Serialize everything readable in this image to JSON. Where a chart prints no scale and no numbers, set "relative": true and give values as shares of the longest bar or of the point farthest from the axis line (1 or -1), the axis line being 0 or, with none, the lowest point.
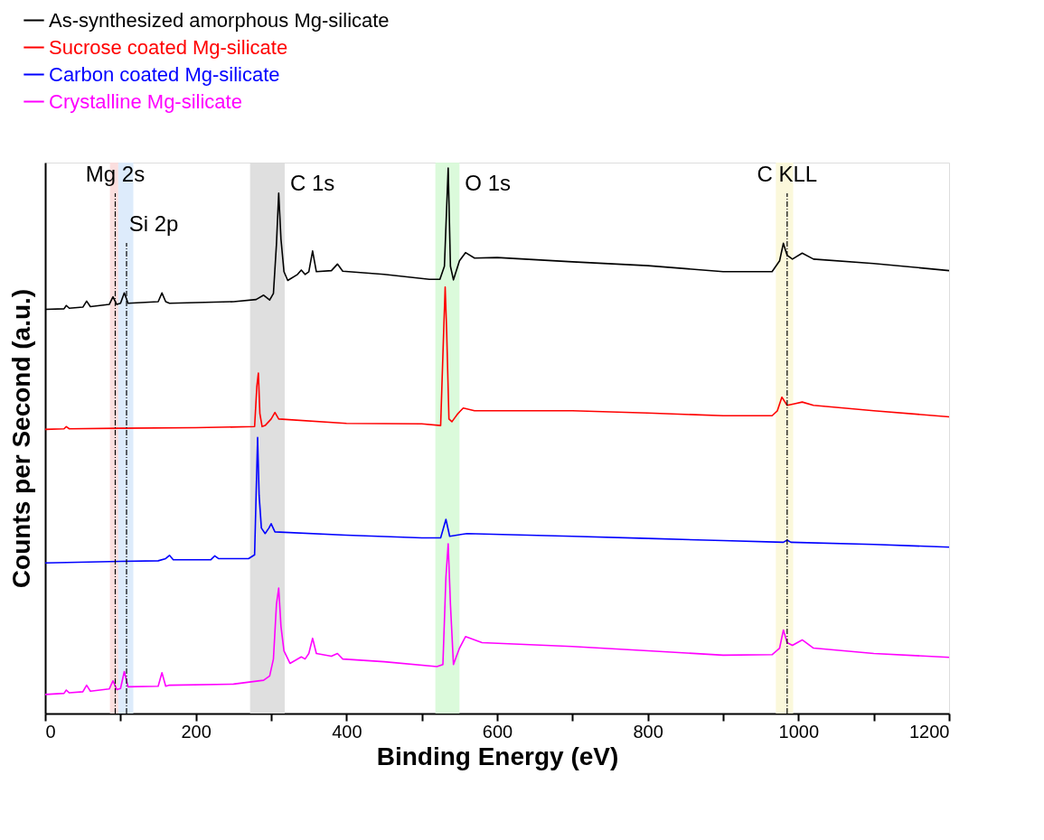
{
  "chart_data": {
    "type": "line",
    "relative": true,
    "xlabel": "Binding Energy (eV)",
    "ylabel": "Counts per Second (a.u.)",
    "xlim": [
      0,
      1200
    ],
    "xticks": [
      0,
      {
        "value": 100,
        "label": null
      },
      200,
      {
        "value": 300,
        "label": null
      },
      400,
      {
        "value": 500,
        "label": null
      },
      600,
      {
        "value": 700,
        "label": null
      },
      800,
      {
        "value": 900,
        "label": null
      },
      1000,
      {
        "value": 1100,
        "label": null
      },
      1200
    ],
    "grid": false,
    "legend": "top left",
    "line_style": "solid",
    "series": [
      {
        "name": "As-synthesized amorphous Mg-silicate",
        "color": "#000000",
        "x": [
          0,
          25,
          28,
          32,
          50,
          55,
          60,
          85,
          90,
          95,
          100,
          105,
          110,
          150,
          155,
          160,
          165,
          250,
          280,
          290,
          298,
          303,
          307,
          310,
          313,
          317,
          322,
          335,
          340,
          345,
          350,
          355,
          360,
          380,
          388,
          395,
          450,
          510,
          524,
          530,
          535,
          538,
          542,
          550,
          558,
          570,
          600,
          700,
          800,
          900,
          965,
          975,
          980,
          985,
          992,
          1005,
          1020,
          1100,
          1200
        ],
        "values": [
          0.741,
          0.742,
          0.748,
          0.743,
          0.745,
          0.756,
          0.746,
          0.75,
          0.764,
          0.75,
          0.752,
          0.771,
          0.752,
          0.755,
          0.771,
          0.755,
          0.752,
          0.755,
          0.759,
          0.767,
          0.758,
          0.77,
          0.86,
          0.954,
          0.87,
          0.81,
          0.794,
          0.805,
          0.813,
          0.805,
          0.81,
          0.848,
          0.81,
          0.812,
          0.824,
          0.811,
          0.805,
          0.796,
          0.796,
          0.82,
          1.0,
          0.82,
          0.795,
          0.83,
          0.845,
          0.835,
          0.836,
          0.828,
          0.821,
          0.81,
          0.81,
          0.83,
          0.862,
          0.84,
          0.833,
          0.844,
          0.833,
          0.825,
          0.812
        ]
      },
      {
        "name": "Sucrose coated Mg-silicate",
        "color": "#ff0000",
        "x": [
          0,
          25,
          28,
          32,
          100,
          200,
          278,
          281,
          283,
          285,
          288,
          292,
          300,
          305,
          310,
          400,
          500,
          525,
          529,
          531,
          533,
          536,
          540,
          548,
          555,
          570,
          700,
          800,
          900,
          965,
          972,
          978,
          985,
          995,
          1005,
          1020,
          1100,
          1200
        ],
        "values": [
          0.521,
          0.522,
          0.526,
          0.522,
          0.523,
          0.524,
          0.526,
          0.6,
          0.624,
          0.55,
          0.526,
          0.528,
          0.54,
          0.552,
          0.54,
          0.532,
          0.531,
          0.528,
          0.7,
          0.782,
          0.7,
          0.54,
          0.535,
          0.55,
          0.56,
          0.555,
          0.555,
          0.551,
          0.546,
          0.546,
          0.555,
          0.58,
          0.565,
          0.568,
          0.571,
          0.565,
          0.555,
          0.544
        ]
      },
      {
        "name": "Carbon coated Mg-silicate",
        "color": "#0000ff",
        "x": [
          0,
          100,
          150,
          160,
          165,
          170,
          220,
          225,
          230,
          270,
          278,
          280,
          282,
          284,
          287,
          292,
          297,
          300,
          305,
          400,
          500,
          525,
          532,
          537,
          560,
          700,
          800,
          900,
          980,
          985,
          990,
          1100,
          1200
        ],
        "values": [
          0.276,
          0.279,
          0.28,
          0.284,
          0.29,
          0.282,
          0.282,
          0.289,
          0.284,
          0.284,
          0.291,
          0.4,
          0.506,
          0.4,
          0.34,
          0.33,
          0.34,
          0.348,
          0.333,
          0.327,
          0.322,
          0.322,
          0.356,
          0.325,
          0.33,
          0.325,
          0.321,
          0.317,
          0.314,
          0.318,
          0.314,
          0.31,
          0.305
        ]
      },
      {
        "name": "Crystalline Mg-silicate",
        "color": "#ff00ff",
        "x": [
          0,
          25,
          28,
          32,
          50,
          55,
          60,
          85,
          90,
          95,
          100,
          105,
          110,
          150,
          155,
          160,
          165,
          250,
          290,
          298,
          303,
          307,
          310,
          313,
          317,
          325,
          340,
          345,
          350,
          355,
          360,
          380,
          388,
          395,
          450,
          520,
          528,
          532,
          535,
          538,
          542,
          550,
          558,
          580,
          700,
          800,
          900,
          965,
          975,
          980,
          985,
          992,
          1005,
          1020,
          1100,
          1200
        ],
        "values": [
          0.035,
          0.037,
          0.043,
          0.038,
          0.04,
          0.052,
          0.041,
          0.045,
          0.06,
          0.044,
          0.046,
          0.077,
          0.049,
          0.05,
          0.075,
          0.05,
          0.052,
          0.054,
          0.061,
          0.069,
          0.1,
          0.2,
          0.23,
          0.16,
          0.115,
          0.092,
          0.104,
          0.1,
          0.11,
          0.138,
          0.11,
          0.105,
          0.11,
          0.1,
          0.095,
          0.086,
          0.09,
          0.25,
          0.311,
          0.2,
          0.09,
          0.12,
          0.141,
          0.13,
          0.123,
          0.115,
          0.107,
          0.108,
          0.12,
          0.153,
          0.13,
          0.125,
          0.135,
          0.12,
          0.11,
          0.103
        ]
      }
    ],
    "bands": [
      {
        "axis": "x",
        "from": 86,
        "to": 97,
        "color": "#fbdada"
      },
      {
        "axis": "x",
        "from": 97,
        "to": 117,
        "color": "#d9e9fb"
      },
      {
        "axis": "x",
        "from": 272,
        "to": 318,
        "color": "#dcdcdc",
        "label": "C 1s"
      },
      {
        "axis": "x",
        "from": 518,
        "to": 550,
        "color": "#d7fad7",
        "label": "O 1s"
      },
      {
        "axis": "x",
        "from": 970,
        "to": 993,
        "color": "#fbf7d7"
      }
    ],
    "ref_lines": [
      {
        "axis": "x",
        "value": 93,
        "color": "#000000",
        "line_style": "dashed",
        "label": "Mg 2s"
      },
      {
        "axis": "x",
        "value": 108,
        "color": "#000000",
        "line_style": "dashed",
        "label": "Si 2p"
      },
      {
        "axis": "x",
        "value": 985,
        "color": "#000000",
        "line_style": "dashed",
        "label": "C KLL"
      }
    ]
  }
}
